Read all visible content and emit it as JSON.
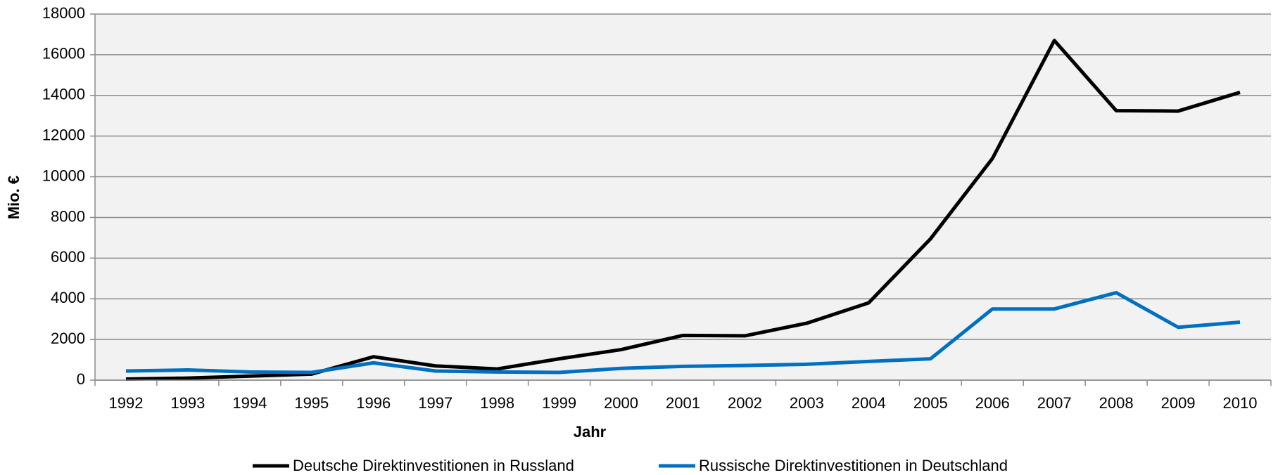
{
  "chart_data": {
    "type": "line",
    "x_label": "Jahr",
    "y_label": "Mio. €",
    "categories": [
      "1992",
      "1993",
      "1994",
      "1995",
      "1996",
      "1997",
      "1998",
      "1999",
      "2000",
      "2001",
      "2002",
      "2003",
      "2004",
      "2005",
      "2006",
      "2007",
      "2008",
      "2009",
      "2010"
    ],
    "series": [
      {
        "name": "Deutsche Direktinvestitionen in Russland",
        "color": "#000000",
        "values": [
          50,
          100,
          200,
          300,
          1150,
          700,
          550,
          1050,
          1500,
          2200,
          2180,
          2800,
          3800,
          6950,
          10900,
          16700,
          13250,
          13230,
          14150
        ]
      },
      {
        "name": "Russische Direktinvestitionen in Deutschland",
        "color": "#0070c0",
        "values": [
          450,
          500,
          400,
          380,
          850,
          450,
          400,
          380,
          580,
          680,
          720,
          780,
          920,
          1050,
          3500,
          3500,
          4300,
          2600,
          2850
        ]
      }
    ],
    "ylim": [
      0,
      18000
    ],
    "yticks": [
      0,
      2000,
      4000,
      6000,
      8000,
      10000,
      12000,
      14000,
      16000,
      18000
    ],
    "grid": true,
    "legend": "bottom"
  }
}
